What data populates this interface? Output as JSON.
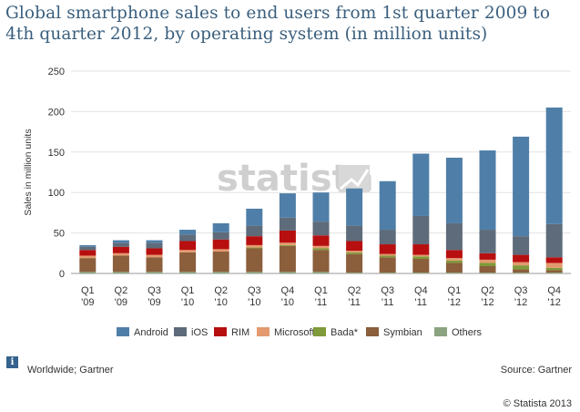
{
  "title": "Global smartphone sales to end users from 1st quarter 2009 to 4th quarter 2012, by operating system (in million units)",
  "watermark": "statista",
  "notes": {
    "region": "Worldwide; Gartner",
    "source": "Source: Gartner",
    "copyright": "© Statista 2013",
    "info_icon": "i"
  },
  "chart_data": {
    "type": "bar",
    "stacked": true,
    "ylabel": "Sales in million units",
    "ylim": [
      0,
      250
    ],
    "yticks": [
      0,
      50,
      100,
      150,
      200,
      250
    ],
    "grid": true,
    "legend_position": "bottom",
    "categories": [
      [
        "Q1",
        "'09"
      ],
      [
        "Q2",
        "'09"
      ],
      [
        "Q3",
        "'09"
      ],
      [
        "Q1",
        "'10"
      ],
      [
        "Q2",
        "'10"
      ],
      [
        "Q3",
        "'10"
      ],
      [
        "Q4",
        "'10"
      ],
      [
        "Q1",
        "'11"
      ],
      [
        "Q2",
        "'11"
      ],
      [
        "Q3",
        "'11"
      ],
      [
        "Q4",
        "'11"
      ],
      [
        "Q1",
        "'12"
      ],
      [
        "Q2",
        "'12"
      ],
      [
        "Q3",
        "'12"
      ],
      [
        "Q4",
        "'12"
      ]
    ],
    "series": [
      {
        "name": "Others",
        "color": "#8ba37f",
        "values": [
          2,
          2,
          2,
          2,
          2,
          2,
          2,
          2,
          1,
          1,
          1,
          1,
          1,
          1,
          1
        ]
      },
      {
        "name": "Symbian",
        "color": "#8b5e3c",
        "values": [
          17,
          20,
          18,
          24,
          25,
          29,
          32,
          27,
          23,
          19,
          17,
          12,
          8,
          4,
          3
        ]
      },
      {
        "name": "Bada*",
        "color": "#7f9a3a",
        "values": [
          0,
          0,
          0,
          0,
          0,
          1,
          1,
          2,
          2,
          2,
          3,
          3,
          4,
          5,
          3
        ]
      },
      {
        "name": "Microsoft",
        "color": "#e39a6e",
        "values": [
          3,
          3,
          3,
          3,
          3,
          3,
          3,
          3,
          2,
          2,
          2,
          3,
          4,
          4,
          6
        ]
      },
      {
        "name": "RIM",
        "color": "#b70f0f",
        "values": [
          7,
          8,
          8,
          11,
          12,
          11,
          15,
          13,
          12,
          12,
          13,
          10,
          8,
          9,
          7
        ]
      },
      {
        "name": "iOS",
        "color": "#5e6b7a",
        "values": [
          4,
          5,
          7,
          8,
          9,
          13,
          16,
          17,
          19,
          18,
          35,
          33,
          29,
          23,
          41
        ]
      },
      {
        "name": "Android",
        "color": "#4f7fa8",
        "values": [
          2,
          3,
          3,
          6,
          11,
          21,
          30,
          36,
          46,
          60,
          77,
          81,
          98,
          123,
          144
        ]
      }
    ],
    "legend_order": [
      "Android",
      "iOS",
      "RIM",
      "Microsoft",
      "Bada*",
      "Symbian",
      "Others"
    ]
  }
}
